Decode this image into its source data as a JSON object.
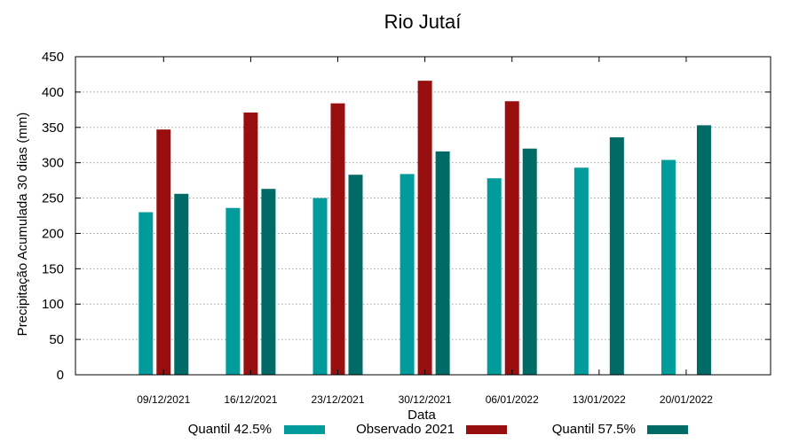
{
  "chart_data": {
    "type": "bar",
    "title": "Rio Jutaí",
    "xlabel": "Data",
    "ylabel": "Precipitação Acumulada 30 dias (mm)",
    "ylim": [
      0,
      450
    ],
    "yticks": [
      0,
      50,
      100,
      150,
      200,
      250,
      300,
      350,
      400,
      450
    ],
    "grid": true,
    "legend_position": "bottom",
    "categories": [
      "09/12/2021",
      "16/12/2021",
      "23/12/2021",
      "30/12/2021",
      "06/01/2022",
      "13/01/2022",
      "20/01/2022"
    ],
    "series": [
      {
        "name": "Quantil 42.5%",
        "color": "#009b9b",
        "values": [
          230,
          236,
          250,
          284,
          278,
          293,
          304
        ]
      },
      {
        "name": "Observado 2021",
        "color": "#990f0f",
        "values": [
          347,
          371,
          384,
          416,
          387,
          null,
          null
        ]
      },
      {
        "name": "Quantil 57.5%",
        "color": "#006a66",
        "values": [
          256,
          263,
          283,
          316,
          320,
          336,
          353
        ]
      }
    ]
  }
}
